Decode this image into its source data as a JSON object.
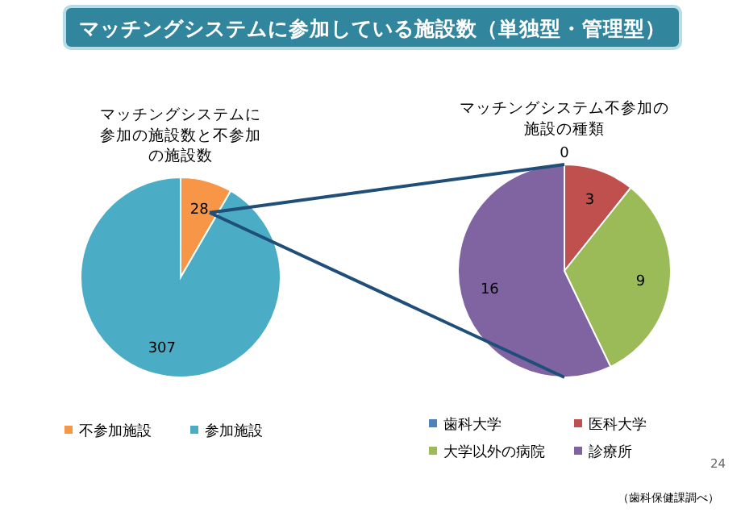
{
  "chart_data": [
    {
      "type": "pie",
      "title": "マッチングシステムに参加している施設数（単独型・管理型）",
      "subtitle": "マッチングシステムに参加の施設数と不参加の施設数",
      "categories": [
        "不参加施設",
        "参加施設"
      ],
      "values": [
        28,
        307
      ],
      "colors": [
        "#f79646",
        "#4bacc6"
      ],
      "data_labels": true,
      "legend": "bottom"
    },
    {
      "type": "pie",
      "title": "マッチングシステム不参加の施設の種類",
      "categories": [
        "歯科大学",
        "医科大学",
        "大学以外の病院",
        "診療所"
      ],
      "values": [
        0,
        3,
        9,
        16
      ],
      "value_labels": [
        "0",
        "3",
        "9",
        "16"
      ],
      "colors": [
        "#4f81bd",
        "#c0504d",
        "#9bbb59",
        "#8064a2"
      ],
      "legend": "bottom",
      "annotations": [
        "24",
        "（歯科保健課調べ）"
      ]
    }
  ]
}
